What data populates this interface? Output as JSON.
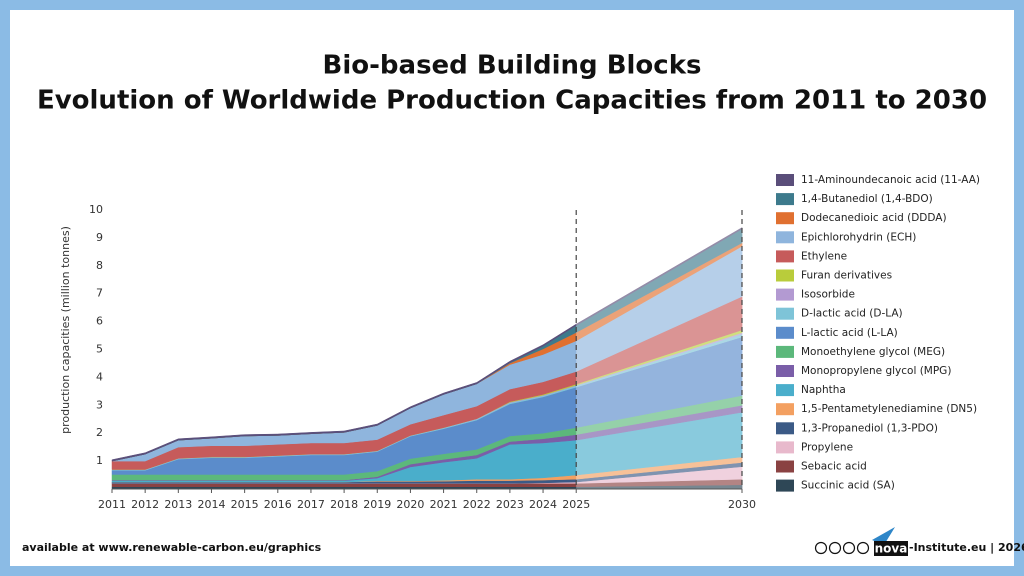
{
  "chart_data": {
    "type": "stacked-area",
    "title": "Bio-based Building Blocks",
    "subtitle": "Evolution of Worldwide Production Capacities from 2011 to 2030",
    "y_label": "production capacities (million tonnes)",
    "x": [
      2011,
      2012,
      2013,
      2014,
      2015,
      2016,
      2017,
      2018,
      2019,
      2020,
      2021,
      2022,
      2023,
      2024,
      2025,
      2030
    ],
    "xlim": [
      2011,
      2030
    ],
    "xticks": [
      2011,
      2012,
      2013,
      2014,
      2015,
      2016,
      2017,
      2018,
      2019,
      2020,
      2021,
      2022,
      2023,
      2024,
      2025,
      2030
    ],
    "ylim": [
      0,
      10
    ],
    "yticks": [
      1,
      2,
      3,
      4,
      5,
      6,
      7,
      8,
      9,
      10
    ],
    "series": [
      {
        "name": "Succinic acid (SA)",
        "color": "#2e4756",
        "values": [
          0.08,
          0.08,
          0.08,
          0.08,
          0.08,
          0.08,
          0.08,
          0.08,
          0.08,
          0.08,
          0.08,
          0.08,
          0.08,
          0.08,
          0.08,
          0.15
        ]
      },
      {
        "name": "Sebacic acid",
        "color": "#8a4242",
        "values": [
          0.12,
          0.12,
          0.12,
          0.12,
          0.12,
          0.12,
          0.12,
          0.12,
          0.12,
          0.12,
          0.12,
          0.12,
          0.12,
          0.12,
          0.12,
          0.2
        ]
      },
      {
        "name": "Propylene",
        "color": "#e8b9cc",
        "values": [
          0,
          0,
          0,
          0,
          0,
          0,
          0,
          0,
          0,
          0,
          0,
          0,
          0,
          0.02,
          0.05,
          0.45
        ]
      },
      {
        "name": "1,3-Propanediol (1,3-PDO)",
        "color": "#3b5a86",
        "values": [
          0.05,
          0.05,
          0.05,
          0.05,
          0.05,
          0.05,
          0.05,
          0.05,
          0.07,
          0.07,
          0.08,
          0.1,
          0.1,
          0.1,
          0.1,
          0.15
        ]
      },
      {
        "name": "1,5-Pentametylenediamine (DN5)",
        "color": "#f3a061",
        "values": [
          0,
          0,
          0,
          0,
          0,
          0,
          0,
          0,
          0.02,
          0.02,
          0.03,
          0.05,
          0.05,
          0.08,
          0.15,
          0.2
        ]
      },
      {
        "name": "Naphtha",
        "color": "#4aaecb",
        "values": [
          0.05,
          0.05,
          0.05,
          0.05,
          0.05,
          0.05,
          0.05,
          0.05,
          0.1,
          0.5,
          0.65,
          0.75,
          1.25,
          1.25,
          1.25,
          1.6
        ]
      },
      {
        "name": "Monopropylene glycol (MPG)",
        "color": "#7a5ea8",
        "values": [
          0.02,
          0.02,
          0.02,
          0.02,
          0.02,
          0.02,
          0.02,
          0.02,
          0.05,
          0.1,
          0.1,
          0.12,
          0.1,
          0.15,
          0.2,
          0.25
        ]
      },
      {
        "name": "Monoethylene glycol (MEG)",
        "color": "#5cb87b",
        "values": [
          0.2,
          0.2,
          0.2,
          0.2,
          0.2,
          0.2,
          0.2,
          0.2,
          0.2,
          0.2,
          0.2,
          0.2,
          0.2,
          0.2,
          0.25,
          0.35
        ]
      },
      {
        "name": "L-lactic acid (L-LA)",
        "color": "#5b8ccb",
        "values": [
          0.15,
          0.15,
          0.55,
          0.6,
          0.6,
          0.65,
          0.7,
          0.7,
          0.7,
          0.8,
          0.9,
          1.05,
          1.15,
          1.3,
          1.45,
          2.1
        ]
      },
      {
        "name": "D-lactic acid (D-LA)",
        "color": "#7ec4d8",
        "values": [
          0.02,
          0.02,
          0.02,
          0.02,
          0.02,
          0.02,
          0.02,
          0.02,
          0.02,
          0.02,
          0.03,
          0.03,
          0.04,
          0.04,
          0.05,
          0.1
        ]
      },
      {
        "name": "Isosorbide",
        "color": "#b39ad2",
        "values": [
          0.01,
          0.01,
          0.01,
          0.01,
          0.01,
          0.01,
          0.01,
          0.01,
          0.01,
          0.01,
          0.01,
          0.02,
          0.02,
          0.02,
          0.02,
          0.05
        ]
      },
      {
        "name": "Furan derivatives",
        "color": "#b9cc3b",
        "values": [
          0,
          0,
          0,
          0,
          0,
          0,
          0,
          0,
          0,
          0,
          0,
          0,
          0.02,
          0.03,
          0.04,
          0.1
        ]
      },
      {
        "name": "Ethylene",
        "color": "#c65b5b",
        "values": [
          0.3,
          0.3,
          0.4,
          0.4,
          0.4,
          0.4,
          0.4,
          0.4,
          0.4,
          0.4,
          0.45,
          0.45,
          0.45,
          0.45,
          0.45,
          1.2
        ]
      },
      {
        "name": "Epichlorohydrin (ECH)",
        "color": "#8fb5dd",
        "values": [
          0,
          0.25,
          0.25,
          0.27,
          0.35,
          0.32,
          0.33,
          0.38,
          0.51,
          0.58,
          0.74,
          0.8,
          0.88,
          0.98,
          1.1,
          1.8
        ]
      },
      {
        "name": "Dodecanedioic acid (DDDA)",
        "color": "#e07030",
        "values": [
          0,
          0,
          0,
          0,
          0,
          0,
          0,
          0,
          0,
          0,
          0,
          0,
          0.05,
          0.2,
          0.3,
          0.12
        ]
      },
      {
        "name": "1,4-Butanediol (1,4-BDO)",
        "color": "#3d7a8c",
        "values": [
          0,
          0,
          0,
          0,
          0,
          0,
          0,
          0,
          0,
          0,
          0,
          0,
          0.02,
          0.1,
          0.25,
          0.5
        ]
      },
      {
        "name": "11-Aminoundecanoic acid (11-AA)",
        "color": "#5a4e7a",
        "values": [
          0.05,
          0.05,
          0.05,
          0.05,
          0.05,
          0.05,
          0.05,
          0.05,
          0.05,
          0.05,
          0.05,
          0.05,
          0.05,
          0.05,
          0.05,
          0.05
        ]
      }
    ],
    "footer_left": "available at www.renewable-carbon.eu/graphics",
    "logo": "nova",
    "footer_right": "-Institute.eu | 2026"
  }
}
